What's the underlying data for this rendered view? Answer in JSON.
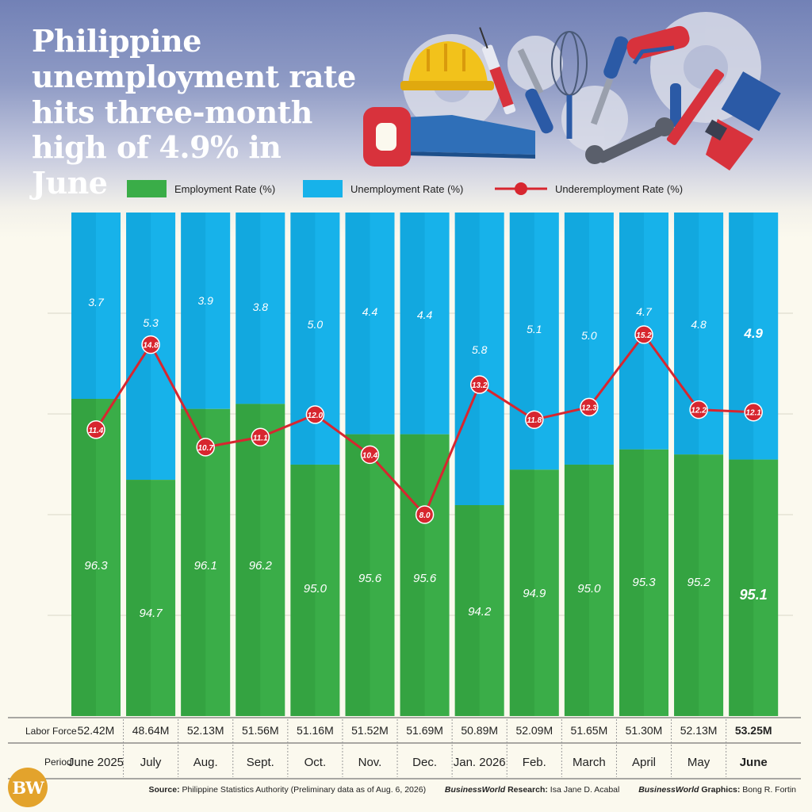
{
  "title": "Philippine unemployment rate hits three-month high of 4.9% in June",
  "legend": {
    "employment": "Employment  Rate (%)",
    "unemployment": "Unemployment Rate (%)",
    "underemployment": "Underemployment Rate (%)"
  },
  "row_labels": {
    "labor_force": "Labor Force",
    "period": "Period"
  },
  "colors": {
    "employment": "#3aad48",
    "employment_dark": "#2f9a3d",
    "unemployment": "#17b2ea",
    "unemployment_dark": "#0fa1d6",
    "underemployment": "#d7262f"
  },
  "footer": {
    "logo": "BW",
    "source_label": "Source:",
    "source_text": "Philippine Statistics Authority (Preliminary data as of Aug. 6, 2026)",
    "research_brand": "BusinessWorld",
    "research_label": "Research:",
    "research_text": "Isa Jane D. Acabal",
    "graphics_brand": "BusinessWorld",
    "graphics_label": "Graphics:",
    "graphics_text": "Bong R. Fortin"
  },
  "chart_data": {
    "type": "bar",
    "stacked": true,
    "categories": [
      "June 2025",
      "July",
      "Aug.",
      "Sept.",
      "Oct.",
      "Nov.",
      "Dec.",
      "Jan. 2026",
      "Feb.",
      "March",
      "April",
      "May",
      "June"
    ],
    "labor_force": [
      "52.42M",
      "48.64M",
      "52.13M",
      "51.56M",
      "51.16M",
      "51.52M",
      "51.69M",
      "50.89M",
      "52.09M",
      "51.65M",
      "51.30M",
      "52.13M",
      "53.25M"
    ],
    "series": [
      {
        "name": "Employment  Rate (%)",
        "type": "bar",
        "values": [
          96.3,
          94.7,
          96.1,
          96.2,
          95.0,
          95.6,
          95.6,
          94.2,
          94.9,
          95.0,
          95.3,
          95.2,
          95.1
        ]
      },
      {
        "name": "Unemployment Rate (%)",
        "type": "bar",
        "values": [
          3.7,
          5.3,
          3.9,
          3.8,
          5.0,
          4.4,
          4.4,
          5.8,
          5.1,
          5.0,
          4.7,
          4.8,
          4.9
        ]
      },
      {
        "name": "Underemployment Rate (%)",
        "type": "line",
        "values": [
          11.4,
          14.8,
          10.7,
          11.1,
          12.0,
          10.4,
          8.0,
          13.2,
          11.8,
          12.3,
          15.2,
          12.2,
          12.1
        ]
      }
    ],
    "display_labels": {
      "employment": [
        "96.3",
        "94.7",
        "96.1",
        "96.2",
        "95.0",
        "95.6",
        "95.6",
        "94.2",
        "94.9",
        "95.0",
        "95.3",
        "95.2",
        "95.1"
      ],
      "unemployment": [
        "3.7",
        "5.3",
        "3.9",
        "3.8",
        "5.0",
        "4.4",
        "4.4",
        "5.8",
        "5.1",
        "5.0",
        "4.7",
        "4.8",
        "4.9"
      ],
      "underemployment": [
        "11.4",
        "14.8",
        "10.7",
        "11.1",
        "12.0",
        "10.4",
        "8.0",
        "13.2",
        "11.8",
        "12.3",
        "15.2",
        "12.2",
        "12.1"
      ]
    },
    "highlight_last": true,
    "grid": true,
    "legend_position": "top"
  }
}
